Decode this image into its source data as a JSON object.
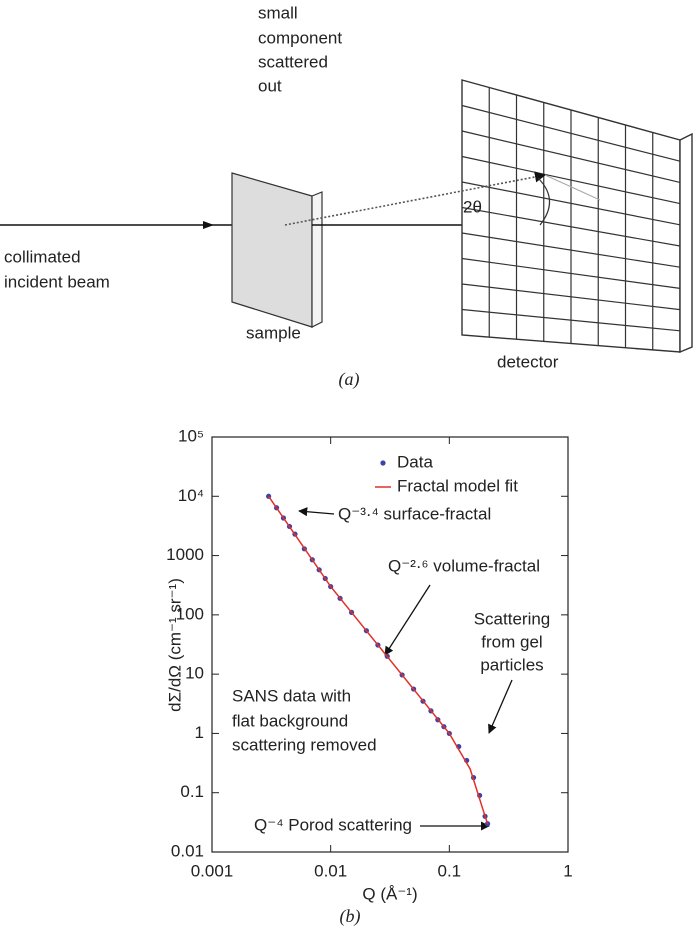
{
  "diagram": {
    "scattered_label": [
      "small",
      "component",
      "scattered",
      "out"
    ],
    "beam_label": [
      "collimated",
      "incident beam"
    ],
    "sample_label": "sample",
    "detector_label": "detector",
    "angle_label": "2θ",
    "caption": "(a)"
  },
  "chart_data": {
    "type": "scatter",
    "caption": "(b)",
    "xlabel": "Q (Å⁻¹)",
    "ylabel": "dΣ/dΩ (cm⁻¹ sr⁻¹)",
    "log_x": true,
    "log_y": true,
    "xlim": [
      0.001,
      1
    ],
    "xticks": [
      0.001,
      0.01,
      0.1,
      1
    ],
    "ylim": [
      0.01,
      100000
    ],
    "yticks": [
      0.01,
      0.1,
      1,
      10,
      100,
      1000,
      {
        "value": 10000,
        "label": "10⁴"
      },
      {
        "value": 100000,
        "label": "10⁵"
      }
    ],
    "legend": "upper right",
    "series": [
      {
        "name": "Data",
        "color": "#3a44a8",
        "style": "points",
        "x": [
          0.003,
          0.0035,
          0.004,
          0.0045,
          0.005,
          0.006,
          0.007,
          0.008,
          0.009,
          0.01,
          0.012,
          0.015,
          0.02,
          0.025,
          0.03,
          0.04,
          0.05,
          0.06,
          0.07,
          0.08,
          0.09,
          0.1,
          0.12,
          0.14,
          0.16,
          0.18,
          0.2,
          0.21
        ],
        "values": [
          10000,
          6400,
          4300,
          3100,
          2300,
          1300,
          850,
          575,
          410,
          300,
          190,
          110,
          54,
          31,
          20,
          9.7,
          5.6,
          3.5,
          2.4,
          1.7,
          1.3,
          1.0,
          0.6,
          0.35,
          0.18,
          0.09,
          0.04,
          0.03
        ]
      },
      {
        "name": "Fractal model fit",
        "color": "#e0302a",
        "style": "line",
        "x": [
          0.003,
          0.01,
          0.1,
          0.15,
          0.2,
          0.21
        ],
        "values": [
          10000,
          300,
          1,
          0.25,
          0.04,
          0.03
        ]
      }
    ],
    "annotations": [
      {
        "lines": [
          "Q⁻³·⁴ surface-fractal"
        ]
      },
      {
        "lines": [
          "Q⁻²·⁶ volume-fractal"
        ]
      },
      {
        "lines": [
          "Scattering",
          "from gel",
          "particles"
        ]
      },
      {
        "lines": [
          "SANS data with",
          "flat background",
          "scattering removed"
        ]
      },
      {
        "lines": [
          "Q⁻⁴ Porod scattering"
        ]
      }
    ]
  }
}
